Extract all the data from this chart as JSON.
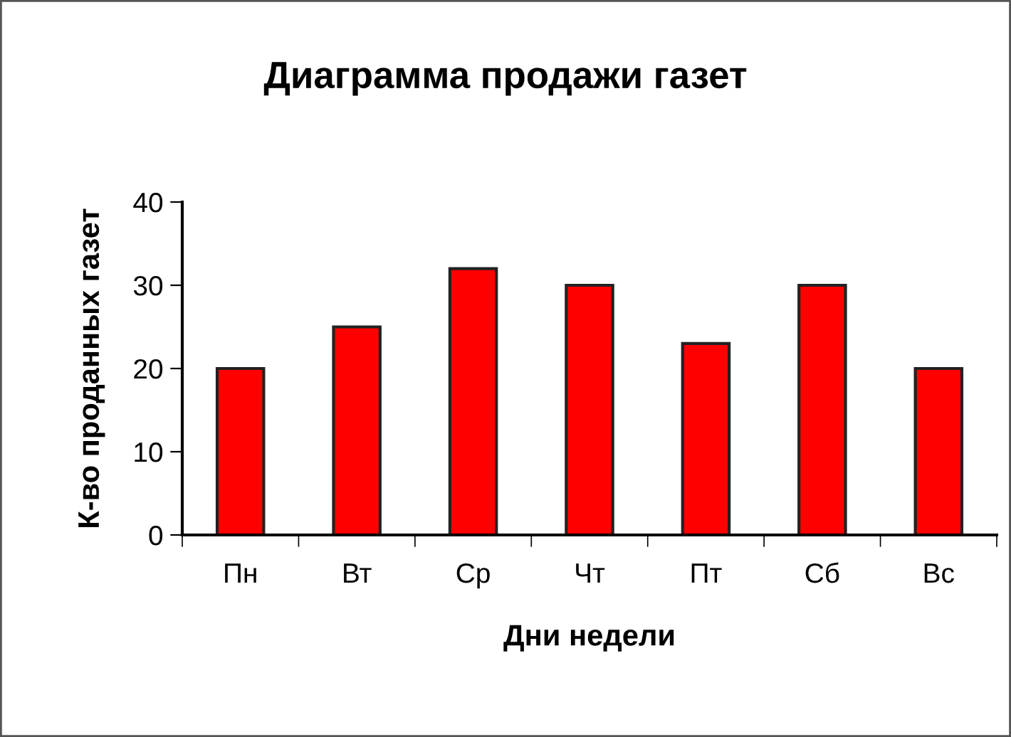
{
  "chart_data": {
    "type": "bar",
    "title": "Диаграмма продажи газет",
    "xlabel": "Дни недели",
    "ylabel": "К-во проданных газет",
    "categories": [
      "Пн",
      "Вт",
      "Ср",
      "Чт",
      "Пт",
      "Сб",
      "Вс"
    ],
    "values": [
      20,
      25,
      32,
      30,
      23,
      30,
      20
    ],
    "color": "#ff0000",
    "ylim": [
      0,
      40
    ],
    "yticks": [
      0,
      10,
      20,
      30,
      40
    ],
    "grid": false,
    "legend": false
  }
}
